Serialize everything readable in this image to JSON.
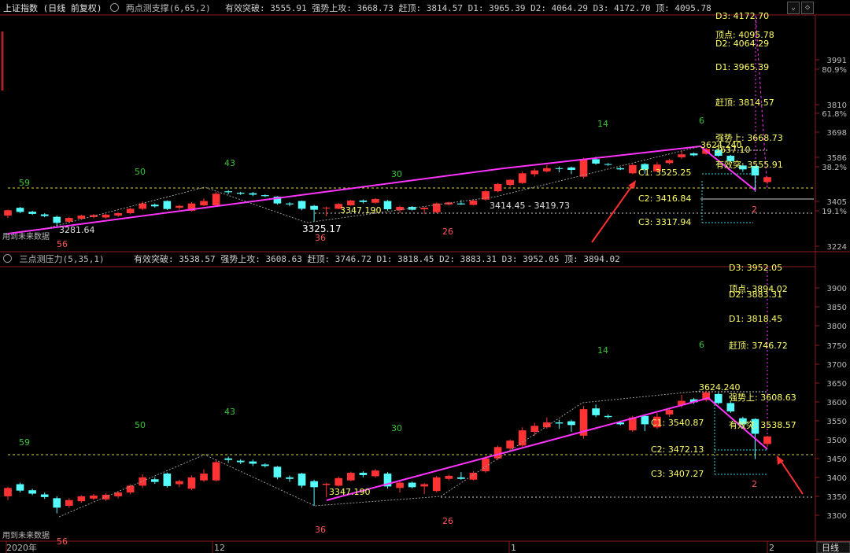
{
  "top": {
    "title": "上证指数 (日线 前复权)",
    "indicator_name": "两点测支撑(6,65,2)",
    "header_values": "有效突破: 3555.91  强势上攻: 3668.73  赶顶: 3814.57  D1: 3965.39  D2: 4064.29  D3: 4172.70  顶: 4095.78",
    "right_labels": [
      "D3: 4172.70",
      "顶点: 4095.78",
      "D2: 4064.29",
      "D1: 3965.39",
      "赶顶: 3814.57",
      "强势上: 3668.73",
      "有效突: 3555.91"
    ],
    "peak_label": "3624.240",
    "peak_label2": "3637.10",
    "c_labels": [
      "C1: 3525.25",
      "C2: 3416.84",
      "C3: 3317.94"
    ],
    "low_labels": {
      "l1": "3281.64",
      "l2": "3325.17",
      "l3": "3347.190",
      "l4": "3414.45 - 3419.73"
    },
    "wave_numbers": {
      "n59": "59",
      "n50": "50",
      "n43": "43",
      "n30": "30",
      "n14": "14",
      "n6": "6",
      "n36": "36",
      "n26": "26",
      "n2": "2",
      "n56": "56"
    },
    "future_note": "用到未来数据",
    "axis": [
      {
        "v": "3991",
        "y": 76
      },
      {
        "v": "80.9%",
        "y": 88
      },
      {
        "v": "3810",
        "y": 133
      },
      {
        "v": "61.8%",
        "y": 144
      },
      {
        "v": "3698",
        "y": 168
      },
      {
        "v": "3586",
        "y": 200
      },
      {
        "v": "38.2%",
        "y": 212
      },
      {
        "v": "3405",
        "y": 256
      },
      {
        "v": "19.1%",
        "y": 268
      },
      {
        "v": "3224",
        "y": 313
      }
    ]
  },
  "bottom": {
    "title": "三点测压力(5,35,1)",
    "header_values": "有效突破: 3538.57  强势上攻: 3608.63  赶顶: 3746.72  D1: 3818.45  D2: 3883.31  D3: 3952.05  顶: 3894.02",
    "right_labels": [
      "D3: 3952.05",
      "顶点: 3894.02",
      "D2: 3883.31",
      "D1: 3818.45",
      "赶顶: 3746.72",
      "强势上: 3608.63",
      "有效突: 3538.57"
    ],
    "peak_label": "3624.240",
    "c_labels": [
      "C1: 3540.87",
      "C2: 3472.13",
      "C3: 3407.27"
    ],
    "low_labels": {
      "l3": "3347.190"
    },
    "wave_numbers": {
      "n59": "59",
      "n50": "50",
      "n43": "43",
      "n30": "30",
      "n14": "14",
      "n6": "6",
      "n36": "36",
      "n26": "26",
      "n2": "2",
      "n56": "56"
    },
    "future_note": "用到未来数据",
    "axis": [
      {
        "v": "3900",
        "y": 366
      },
      {
        "v": "3850",
        "y": 390
      },
      {
        "v": "3800",
        "y": 414
      },
      {
        "v": "3750",
        "y": 439
      },
      {
        "v": "3700",
        "y": 463
      },
      {
        "v": "3650",
        "y": 487
      },
      {
        "v": "3600",
        "y": 511
      },
      {
        "v": "3550",
        "y": 535
      },
      {
        "v": "3500",
        "y": 559
      },
      {
        "v": "3450",
        "y": 583
      },
      {
        "v": "3400",
        "y": 607
      },
      {
        "v": "3350",
        "y": 631
      },
      {
        "v": "3300",
        "y": 655
      }
    ]
  },
  "xaxis": {
    "year": "2020年",
    "m1": "12",
    "m2": "1",
    "m3": "2",
    "period": "日线"
  },
  "colors": {
    "up": "#ff3333",
    "down": "#54fcfc",
    "trend": "#ff33ff",
    "annot": "#ffff66",
    "cyan": "#3fd6e6",
    "green": "#35c535",
    "red": "#ff5555",
    "arrow": "#ff3030"
  },
  "candles": [
    {
      "o": 3350,
      "c": 3372,
      "h": 3375,
      "l": 3340
    },
    {
      "o": 3382,
      "c": 3365,
      "h": 3386,
      "l": 3360
    },
    {
      "o": 3366,
      "c": 3357,
      "h": 3370,
      "l": 3353
    },
    {
      "o": 3355,
      "c": 3348,
      "h": 3360,
      "l": 3343
    },
    {
      "o": 3345,
      "c": 3320,
      "h": 3350,
      "l": 3305
    },
    {
      "o": 3325,
      "c": 3340,
      "h": 3345,
      "l": 3320
    },
    {
      "o": 3337,
      "c": 3350,
      "h": 3353,
      "l": 3333
    },
    {
      "o": 3344,
      "c": 3352,
      "h": 3356,
      "l": 3340
    },
    {
      "o": 3342,
      "c": 3354,
      "h": 3358,
      "l": 3338
    },
    {
      "o": 3350,
      "c": 3360,
      "h": 3364,
      "l": 3345
    },
    {
      "o": 3360,
      "c": 3378,
      "h": 3382,
      "l": 3355
    },
    {
      "o": 3378,
      "c": 3400,
      "h": 3408,
      "l": 3372
    },
    {
      "o": 3395,
      "c": 3388,
      "h": 3400,
      "l": 3383
    },
    {
      "o": 3410,
      "c": 3377,
      "h": 3413,
      "l": 3373
    },
    {
      "o": 3382,
      "c": 3390,
      "h": 3394,
      "l": 3374
    },
    {
      "o": 3370,
      "c": 3400,
      "h": 3405,
      "l": 3366
    },
    {
      "o": 3392,
      "c": 3410,
      "h": 3421,
      "l": 3388
    },
    {
      "o": 3392,
      "c": 3440,
      "h": 3447,
      "l": 3389
    },
    {
      "o": 3450,
      "c": 3446,
      "h": 3455,
      "l": 3438
    },
    {
      "o": 3444,
      "c": 3440,
      "h": 3448,
      "l": 3435
    },
    {
      "o": 3442,
      "c": 3436,
      "h": 3447,
      "l": 3430
    },
    {
      "o": 3434,
      "c": 3430,
      "h": 3437,
      "l": 3426
    },
    {
      "o": 3428,
      "c": 3400,
      "h": 3430,
      "l": 3395
    },
    {
      "o": 3400,
      "c": 3396,
      "h": 3405,
      "l": 3388
    },
    {
      "o": 3410,
      "c": 3378,
      "h": 3412,
      "l": 3372
    },
    {
      "o": 3390,
      "c": 3374,
      "h": 3394,
      "l": 3325
    },
    {
      "o": 3380,
      "c": 3383,
      "h": 3386,
      "l": 3347
    },
    {
      "o": 3378,
      "c": 3398,
      "h": 3402,
      "l": 3376
    },
    {
      "o": 3392,
      "c": 3412,
      "h": 3415,
      "l": 3390
    },
    {
      "o": 3412,
      "c": 3406,
      "h": 3416,
      "l": 3400
    },
    {
      "o": 3403,
      "c": 3418,
      "h": 3422,
      "l": 3399
    },
    {
      "o": 3410,
      "c": 3376,
      "h": 3414,
      "l": 3370
    },
    {
      "o": 3372,
      "c": 3386,
      "h": 3390,
      "l": 3360
    },
    {
      "o": 3386,
      "c": 3374,
      "h": 3389,
      "l": 3371
    },
    {
      "o": 3376,
      "c": 3382,
      "h": 3385,
      "l": 3356
    },
    {
      "o": 3364,
      "c": 3400,
      "h": 3404,
      "l": 3360
    },
    {
      "o": 3396,
      "c": 3404,
      "h": 3407,
      "l": 3392
    },
    {
      "o": 3400,
      "c": 3396,
      "h": 3414,
      "l": 3394
    },
    {
      "o": 3394,
      "c": 3412,
      "h": 3416,
      "l": 3392
    },
    {
      "o": 3416,
      "c": 3450,
      "h": 3455,
      "l": 3412
    },
    {
      "o": 3450,
      "c": 3480,
      "h": 3484,
      "l": 3446
    },
    {
      "o": 3476,
      "c": 3497,
      "h": 3500,
      "l": 3470
    },
    {
      "o": 3484,
      "c": 3524,
      "h": 3532,
      "l": 3480
    },
    {
      "o": 3520,
      "c": 3536,
      "h": 3544,
      "l": 3510
    },
    {
      "o": 3532,
      "c": 3545,
      "h": 3558,
      "l": 3528
    },
    {
      "o": 3545,
      "c": 3542,
      "h": 3552,
      "l": 3528
    },
    {
      "o": 3548,
      "c": 3538,
      "h": 3552,
      "l": 3520
    },
    {
      "o": 3510,
      "c": 3580,
      "h": 3588,
      "l": 3502
    },
    {
      "o": 3582,
      "c": 3564,
      "h": 3592,
      "l": 3559
    },
    {
      "o": 3562,
      "c": 3559,
      "h": 3566,
      "l": 3555
    },
    {
      "o": 3545,
      "c": 3540,
      "h": 3550,
      "l": 3537
    },
    {
      "o": 3524,
      "c": 3558,
      "h": 3562,
      "l": 3520
    },
    {
      "o": 3562,
      "c": 3540,
      "h": 3566,
      "l": 3522
    },
    {
      "o": 3532,
      "c": 3560,
      "h": 3570,
      "l": 3528
    },
    {
      "o": 3566,
      "c": 3578,
      "h": 3584,
      "l": 3560
    },
    {
      "o": 3590,
      "c": 3602,
      "h": 3618,
      "l": 3584
    },
    {
      "o": 3606,
      "c": 3598,
      "h": 3610,
      "l": 3594
    },
    {
      "o": 3604,
      "c": 3624,
      "h": 3629,
      "l": 3600
    },
    {
      "o": 3620,
      "c": 3596,
      "h": 3624,
      "l": 3592
    },
    {
      "o": 3596,
      "c": 3574,
      "h": 3600,
      "l": 3570
    },
    {
      "o": 3556,
      "c": 3540,
      "h": 3560,
      "l": 3530
    },
    {
      "o": 3554,
      "c": 3515,
      "h": 3556,
      "l": 3448
    },
    {
      "o": 3488,
      "c": 3508,
      "h": 3510,
      "l": 3480
    }
  ]
}
